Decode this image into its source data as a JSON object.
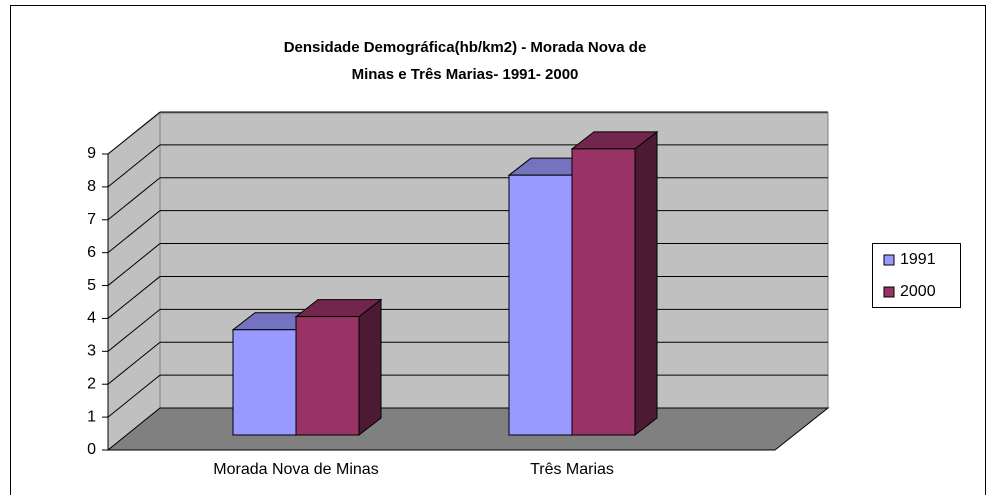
{
  "chart_data": {
    "type": "bar3d",
    "title": [
      "Densidade Demográfica(hb/km2) - Morada Nova de",
      "Minas e Três Marias- 1991- 2000"
    ],
    "categories": [
      "Morada Nova de Minas",
      "Três Marias"
    ],
    "series": [
      {
        "name": "1991",
        "color": "#9999ff",
        "values": [
          3.2,
          7.9
        ]
      },
      {
        "name": "2000",
        "color": "#993366",
        "values": [
          3.6,
          8.7
        ]
      }
    ],
    "ylim": [
      0,
      9
    ],
    "yticks": [
      0,
      1,
      2,
      3,
      4,
      5,
      6,
      7,
      8,
      9
    ],
    "grid": true,
    "legend": "right"
  }
}
